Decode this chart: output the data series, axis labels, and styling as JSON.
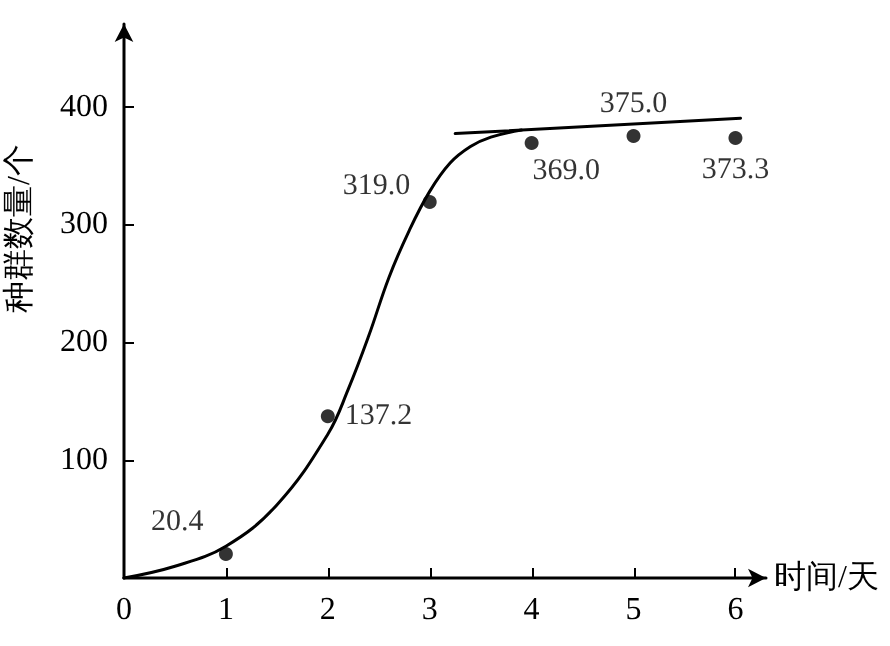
{
  "chart_data": {
    "type": "scatter",
    "xlabel": "时间/天",
    "ylabel": "种群数量/个",
    "xlim": [
      0,
      6.3
    ],
    "ylim": [
      0,
      470
    ],
    "xticks": [
      0,
      1,
      2,
      3,
      4,
      5,
      6
    ],
    "yticks": [
      100,
      200,
      300,
      400
    ],
    "grid": false,
    "series": [
      {
        "color": "#000000",
        "marker": "circle",
        "x": [
          1,
          2,
          3,
          4,
          5,
          6
        ],
        "values": [
          20.4,
          137.2,
          319.0,
          369.0,
          375.0,
          373.3
        ],
        "value_labels": [
          "20.4",
          "137.2",
          "319.0",
          "369.0",
          "375.0",
          "373.3"
        ]
      },
      {
        "type": "line",
        "marker": "none",
        "color": "#000000",
        "x": [
          0,
          0.5,
          1,
          1.5,
          2,
          2.2,
          2.4,
          2.6,
          2.8,
          3,
          3.2,
          3.4,
          3.6,
          3.9
        ],
        "values": [
          0,
          10,
          27,
          62,
          122,
          160,
          205,
          255,
          295,
          328,
          352,
          366,
          374,
          380
        ]
      },
      {
        "type": "line",
        "marker": "none",
        "color": "#000000",
        "x": [
          3.25,
          6.05
        ],
        "values": [
          377,
          390
        ]
      }
    ]
  }
}
